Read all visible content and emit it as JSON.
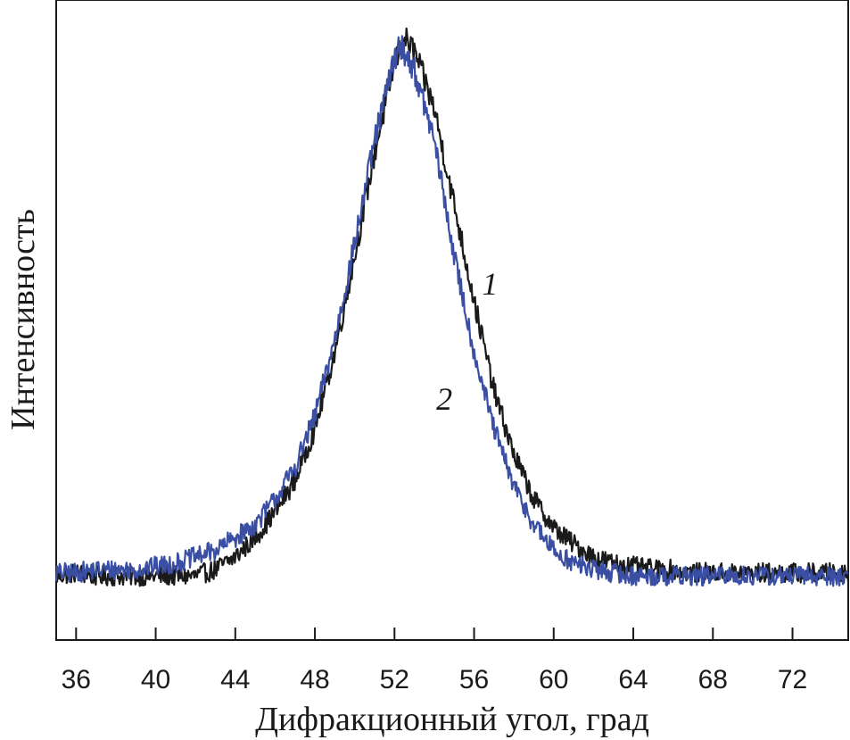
{
  "chart_data": {
    "type": "line",
    "title": "",
    "xlabel": "Дифракционный угол, град",
    "ylabel": "Интенсивность",
    "xlim": [
      35,
      74.8
    ],
    "ylim": [
      0,
      1
    ],
    "xticks": [
      36,
      40,
      44,
      48,
      52,
      56,
      60,
      64,
      68,
      72
    ],
    "grid": false,
    "series": [
      {
        "name": "1",
        "color": "#1a1a1a",
        "x": [
          35,
          36,
          37,
          38,
          39,
          40,
          41,
          42,
          43,
          44,
          45,
          46,
          47,
          48,
          49,
          50,
          51,
          52,
          52.5,
          53,
          54,
          55,
          56,
          57,
          58,
          59,
          60,
          61,
          62,
          63,
          64,
          65,
          66,
          67,
          68,
          69,
          70,
          71,
          72,
          73,
          74,
          74.8
        ],
        "y": [
          0.1,
          0.105,
          0.1,
          0.1,
          0.1,
          0.1,
          0.1,
          0.1,
          0.11,
          0.13,
          0.16,
          0.2,
          0.25,
          0.33,
          0.45,
          0.6,
          0.76,
          0.9,
          0.94,
          0.92,
          0.83,
          0.68,
          0.53,
          0.39,
          0.29,
          0.22,
          0.175,
          0.15,
          0.13,
          0.12,
          0.115,
          0.11,
          0.11,
          0.105,
          0.105,
          0.105,
          0.105,
          0.105,
          0.105,
          0.105,
          0.105,
          0.105
        ]
      },
      {
        "name": "2",
        "color": "#3a4fa3",
        "x": [
          35,
          36,
          37,
          38,
          39,
          40,
          41,
          42,
          43,
          44,
          45,
          46,
          47,
          48,
          49,
          50,
          51,
          52,
          52.3,
          53,
          54,
          55,
          56,
          57,
          58,
          59,
          60,
          61,
          62,
          63,
          64,
          65,
          66,
          67,
          68,
          69,
          70,
          71,
          72,
          73,
          74,
          74.8
        ],
        "y": [
          0.105,
          0.105,
          0.11,
          0.11,
          0.11,
          0.115,
          0.12,
          0.13,
          0.14,
          0.16,
          0.18,
          0.22,
          0.27,
          0.35,
          0.47,
          0.62,
          0.78,
          0.91,
          0.93,
          0.89,
          0.78,
          0.6,
          0.45,
          0.33,
          0.24,
          0.18,
          0.14,
          0.12,
          0.11,
          0.105,
          0.1,
          0.1,
          0.1,
          0.1,
          0.1,
          0.1,
          0.1,
          0.1,
          0.1,
          0.1,
          0.1,
          0.1
        ]
      }
    ],
    "annotations": [
      {
        "text": "1",
        "x": 56.8,
        "y": 0.54
      },
      {
        "text": "2",
        "x": 54.5,
        "y": 0.36
      }
    ]
  }
}
